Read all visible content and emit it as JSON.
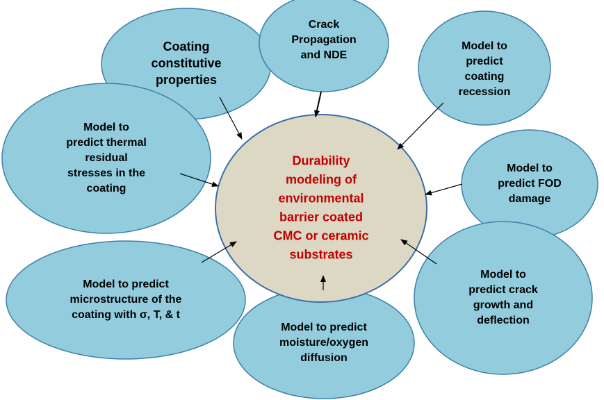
{
  "center": {
    "lines": [
      "Durability",
      "modeling of",
      "environmental",
      "barrier coated",
      "CMC or ceramic",
      "substrates"
    ]
  },
  "nodes": [
    {
      "lines": [
        "Coating",
        "constitutive",
        "properties"
      ]
    },
    {
      "lines": [
        "Crack",
        "Propagation",
        "and NDE"
      ]
    },
    {
      "lines": [
        "Model to",
        "predict",
        "coating",
        "recession"
      ]
    },
    {
      "lines": [
        "Model to",
        "predict thermal",
        "residual",
        "stresses in the",
        "coating"
      ]
    },
    {
      "lines": [
        "Model to",
        "predict FOD",
        "damage"
      ]
    },
    {
      "lines": [
        "Model  to predict",
        "microstructure of the",
        "coating with σ, T, & t"
      ]
    },
    {
      "lines": [
        "Model to predict",
        "moisture/oxygen",
        "diffusion"
      ]
    },
    {
      "lines": [
        "Model to",
        "predict crack",
        "growth and",
        "deflection"
      ]
    }
  ]
}
